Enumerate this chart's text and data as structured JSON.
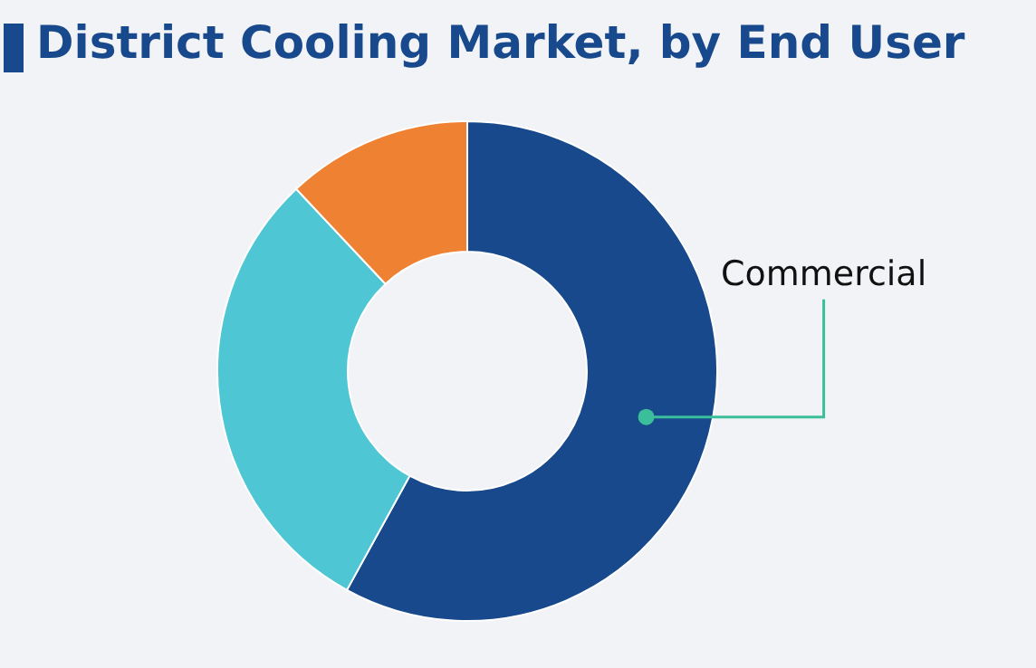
{
  "chart_data": {
    "type": "donut",
    "title": "District Cooling Market, by End User",
    "categories": [
      "Commercial",
      null,
      null
    ],
    "values": [
      58,
      30,
      12
    ],
    "colors": [
      "#17498c",
      "#4fc6d4",
      "#ef8133"
    ]
  }
}
